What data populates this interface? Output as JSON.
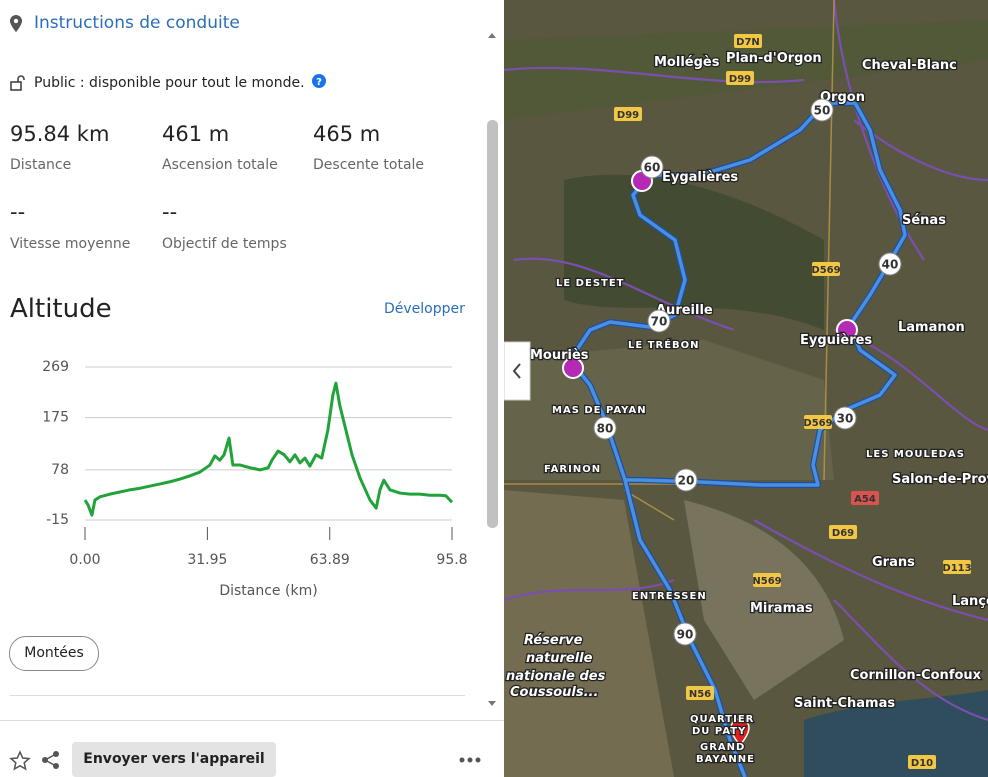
{
  "panel": {
    "header": "Instructions de conduite",
    "visibility": "Public : disponible pour tout le monde.",
    "stats": [
      {
        "value": "95.84 km",
        "label": "Distance"
      },
      {
        "value": "461 m",
        "label": "Ascension totale"
      },
      {
        "value": "465 m",
        "label": "Descente totale"
      },
      {
        "value": "--",
        "label": "Vitesse moyenne"
      },
      {
        "value": "--",
        "label": "Objectif de temps"
      }
    ],
    "altitude_title": "Altitude",
    "expand": "Développer",
    "climbs_button": "Montées",
    "send_button": "Envoyer vers l'appareil"
  },
  "chart_data": {
    "type": "line",
    "x_label": "Distance (km)",
    "x": [
      0,
      0.8,
      1.8,
      2.6,
      3.9,
      6.5,
      9.1,
      11.7,
      14.4,
      17.0,
      19.6,
      22.2,
      24.8,
      27.4,
      30.0,
      32.6,
      33.9,
      35.2,
      36.3,
      37.6,
      38.6,
      40.5,
      43.1,
      45.7,
      47.8,
      48.8,
      50.4,
      52.0,
      53.5,
      54.8,
      56.1,
      57.4,
      58.7,
      60.3,
      61.8,
      63.4,
      64.7,
      65.5,
      66.5,
      68.1,
      69.7,
      71.8,
      74.4,
      76.0,
      77.0,
      78.0,
      79.6,
      82.2,
      84.8,
      87.4,
      90.0,
      92.6,
      94.2,
      95.8
    ],
    "series": [
      {
        "color": "#22a33a",
        "values": [
          22,
          13,
          -6,
          22,
          28,
          33,
          37,
          41,
          44,
          48,
          52,
          56,
          61,
          67,
          74,
          87,
          104,
          96,
          106,
          137,
          87,
          87,
          82,
          78,
          82,
          96,
          113,
          106,
          93,
          106,
          91,
          100,
          85,
          106,
          100,
          152,
          217,
          239,
          198,
          152,
          106,
          63,
          22,
          7,
          41,
          59,
          41,
          35,
          33,
          33,
          31,
          31,
          30,
          18
        ]
      }
    ],
    "xlim": [
      0,
      95.8
    ],
    "xticks": [
      {
        "value": 0,
        "label": "0.00"
      },
      31.95,
      63.89,
      95.8
    ],
    "ylim": [
      -15,
      269
    ],
    "yticks": [
      -15,
      78,
      175,
      269
    ],
    "grid": true
  },
  "map": {
    "places": [
      "Mollégès",
      "Plan-d'Orgon",
      "Cheval-Blanc",
      "Orgon",
      "Eygalières",
      "Sénas",
      "LE DESTET",
      "Aureille",
      "LE TRÉBON",
      "Mouriès",
      "Eyguières",
      "Lamanon",
      "MAS DE PAYAN",
      "FARINON",
      "LES MOULEDAS",
      "Salon-de-Provence",
      "Grans",
      "Lançon",
      "ENTRESSEN",
      "Miramas",
      "Réserve",
      "naturelle",
      "nationale des",
      "Coussouls...",
      "Cornillon-Confoux",
      "Saint-Chamas",
      "QUARTIER",
      "DU PATY",
      "GRAND",
      "BAYANNE"
    ],
    "roads": [
      "D7N",
      "D99",
      "D99",
      "D569",
      "D569",
      "A54",
      "D69",
      "N569",
      "D113",
      "N56",
      "D10"
    ],
    "route_markers": [
      "50",
      "60",
      "40",
      "70",
      "30",
      "80",
      "20",
      "90"
    ]
  }
}
